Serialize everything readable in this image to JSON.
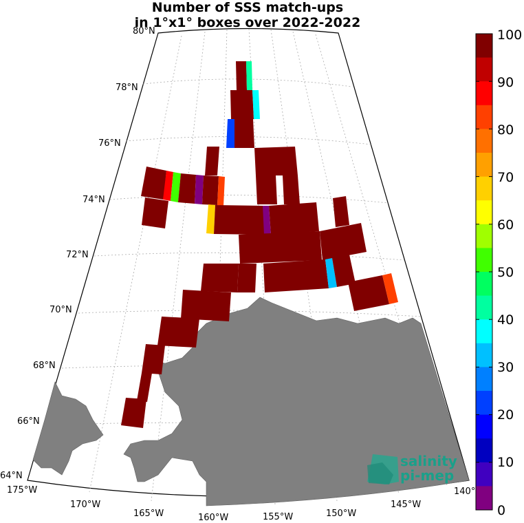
{
  "title": {
    "line1": "Number of SSS match-ups",
    "line2": "in 1°x1° boxes over 2022-2022"
  },
  "map": {
    "lat_labels": [
      "80°N",
      "78°N",
      "76°N",
      "74°N",
      "72°N",
      "70°N",
      "68°N",
      "66°N",
      "64°N"
    ],
    "lon_labels": [
      "175°W",
      "170°W",
      "165°W",
      "160°W",
      "155°W",
      "150°W",
      "145°W",
      "140°"
    ],
    "land_color": "#808080"
  },
  "colorbar": {
    "ticks": [
      "100",
      "90",
      "80",
      "70",
      "60",
      "50",
      "40",
      "30",
      "20",
      "10",
      "0"
    ],
    "range": [
      0,
      100
    ],
    "colors": [
      "#800000",
      "#C00000",
      "#FF0000",
      "#FF4000",
      "#FF7000",
      "#FFA000",
      "#FFD000",
      "#FFFF00",
      "#A0FF00",
      "#40FF00",
      "#00FF60",
      "#00FFA0",
      "#00FFFF",
      "#00C0FF",
      "#0080FF",
      "#0040FF",
      "#0000FF",
      "#0000C0",
      "#4000C0",
      "#800080"
    ]
  },
  "logo": {
    "line1": "salinity",
    "line2": "pi-mep"
  }
}
